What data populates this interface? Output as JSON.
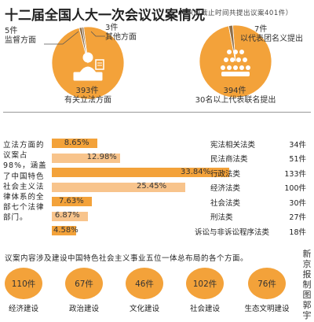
{
  "header": {
    "title": "十二届全国人大一次会议议案情况",
    "note": "（统截止时间共提出议案401件）"
  },
  "pie_left": {
    "slices": [
      {
        "count": "5件",
        "label": "监督方面",
        "value": 5
      },
      {
        "count": "3件",
        "label": "其他方面",
        "value": 3
      },
      {
        "count": "393件",
        "label": "有关立法方面",
        "value": 393
      }
    ],
    "colors": {
      "main": "#f3a23a",
      "minor": "#8d6e4a"
    }
  },
  "pie_right": {
    "slices": [
      {
        "count": "7件",
        "label": "以代表团名义提出",
        "value": 7
      },
      {
        "count": "394件",
        "label": "30名以上代表联名提出",
        "value": 394
      }
    ]
  },
  "left_description": "立法方面的议案占98%，涵盖了中国特色社会主义法律体系的全部七个法律部门。",
  "chart_data": {
    "type": "bar",
    "categories": [
      "宪法相关法类",
      "民法商法类",
      "行政法类",
      "经济法类",
      "社会法类",
      "刑法类",
      "诉讼与非诉讼程序法类"
    ],
    "percents": [
      "8.65%",
      "12.98%",
      "33.84%",
      "25.45%",
      "7.63%",
      "6.87%",
      "4.58%"
    ],
    "values": [
      8.65,
      12.98,
      33.84,
      25.45,
      7.63,
      6.87,
      4.58
    ],
    "counts": [
      "34件",
      "51件",
      "133件",
      "100件",
      "30件",
      "27件",
      "18件"
    ],
    "xlim": [
      0,
      33.84
    ],
    "colors": {
      "bar": "#f3a23a",
      "bar_light": "#f8c48c"
    }
  },
  "bottom": {
    "description": "议案内容涉及建设中国特色社会主义事业五位一体总布局的各个方面。",
    "items": [
      {
        "count": "110件",
        "label": "经济建设"
      },
      {
        "count": "67件",
        "label": "政治建设"
      },
      {
        "count": "46件",
        "label": "文化建设"
      },
      {
        "count": "102件",
        "label": "社会建设"
      },
      {
        "count": "76件",
        "label": "生态文明建设"
      }
    ]
  },
  "credit": "新京报制图郭宇"
}
